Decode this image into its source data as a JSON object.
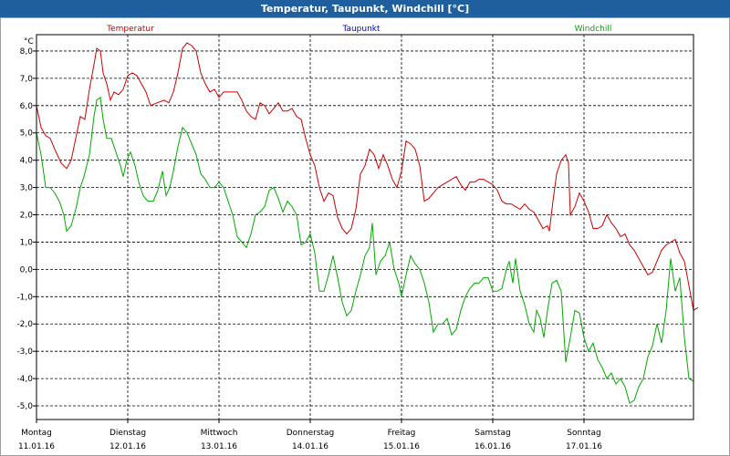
{
  "window": {
    "title": "Temperatur, Taupunkt, Windchill [°C]"
  },
  "chart_data": {
    "type": "line",
    "title": "Temperatur, Taupunkt, Windchill [°C]",
    "ylabel": "°C",
    "ylim": [
      -5.5,
      8.6
    ],
    "xlim": [
      0,
      7.2
    ],
    "grid": true,
    "y_ticks": [
      8.0,
      7.0,
      6.0,
      5.0,
      4.0,
      3.0,
      2.0,
      1.0,
      0.0,
      -1.0,
      -2.0,
      -3.0,
      -4.0,
      -5.0
    ],
    "y_tick_labels": [
      "8,0",
      "7,0",
      "6,0",
      "5,0",
      "4,0",
      "3,0",
      "2,0",
      "1,0",
      "0,0",
      "-1,0",
      "-2,0",
      "-3,0",
      "-4,0",
      "-5,0"
    ],
    "x_ticks": [
      {
        "day": "Montag",
        "date": "11.01.16"
      },
      {
        "day": "Dienstag",
        "date": "12.01.16"
      },
      {
        "day": "Mittwoch",
        "date": "13.01.16"
      },
      {
        "day": "Donnerstag",
        "date": "14.01.16"
      },
      {
        "day": "Freitag",
        "date": "15.01.16"
      },
      {
        "day": "Samstag",
        "date": "16.01.16"
      },
      {
        "day": "Sonntag",
        "date": "17.01.16"
      }
    ],
    "series": [
      {
        "name": "Temperatur",
        "color": "#cc0000",
        "points": [
          [
            0,
            6.0
          ],
          [
            0.05,
            5.2
          ],
          [
            0.1,
            4.9
          ],
          [
            0.15,
            4.8
          ],
          [
            0.2,
            4.4
          ],
          [
            0.27,
            3.9
          ],
          [
            0.33,
            3.7
          ],
          [
            0.38,
            4.0
          ],
          [
            0.43,
            4.8
          ],
          [
            0.48,
            5.6
          ],
          [
            0.53,
            5.5
          ],
          [
            0.58,
            6.6
          ],
          [
            0.63,
            7.5
          ],
          [
            0.66,
            8.1
          ],
          [
            0.7,
            8.0
          ],
          [
            0.73,
            7.2
          ],
          [
            0.77,
            6.8
          ],
          [
            0.81,
            6.2
          ],
          [
            0.85,
            6.5
          ],
          [
            0.9,
            6.4
          ],
          [
            0.95,
            6.6
          ],
          [
            1.0,
            7.1
          ],
          [
            1.05,
            7.2
          ],
          [
            1.1,
            7.1
          ],
          [
            1.15,
            6.8
          ],
          [
            1.2,
            6.5
          ],
          [
            1.25,
            6.0
          ],
          [
            1.32,
            6.1
          ],
          [
            1.4,
            6.2
          ],
          [
            1.45,
            6.1
          ],
          [
            1.5,
            6.5
          ],
          [
            1.55,
            7.2
          ],
          [
            1.6,
            8.1
          ],
          [
            1.65,
            8.3
          ],
          [
            1.7,
            8.2
          ],
          [
            1.75,
            8.0
          ],
          [
            1.8,
            7.2
          ],
          [
            1.85,
            6.8
          ],
          [
            1.9,
            6.5
          ],
          [
            1.95,
            6.6
          ],
          [
            2.0,
            6.3
          ],
          [
            2.05,
            6.5
          ],
          [
            2.1,
            6.5
          ],
          [
            2.15,
            6.5
          ],
          [
            2.2,
            6.5
          ],
          [
            2.25,
            6.2
          ],
          [
            2.3,
            5.8
          ],
          [
            2.35,
            5.6
          ],
          [
            2.4,
            5.5
          ],
          [
            2.45,
            6.1
          ],
          [
            2.5,
            6.0
          ],
          [
            2.55,
            5.7
          ],
          [
            2.6,
            5.9
          ],
          [
            2.65,
            6.1
          ],
          [
            2.7,
            5.8
          ],
          [
            2.75,
            5.8
          ],
          [
            2.8,
            5.9
          ],
          [
            2.85,
            5.6
          ],
          [
            2.9,
            5.5
          ],
          [
            2.95,
            4.8
          ],
          [
            3.0,
            4.2
          ],
          [
            3.05,
            3.8
          ],
          [
            3.1,
            3.0
          ],
          [
            3.15,
            2.5
          ],
          [
            3.2,
            2.8
          ],
          [
            3.25,
            2.7
          ],
          [
            3.3,
            1.9
          ],
          [
            3.35,
            1.5
          ],
          [
            3.4,
            1.3
          ],
          [
            3.45,
            1.5
          ],
          [
            3.5,
            2.2
          ],
          [
            3.55,
            3.5
          ],
          [
            3.6,
            3.8
          ],
          [
            3.65,
            4.4
          ],
          [
            3.7,
            4.2
          ],
          [
            3.75,
            3.7
          ],
          [
            3.8,
            4.2
          ],
          [
            3.85,
            3.8
          ],
          [
            3.9,
            3.3
          ],
          [
            3.95,
            3.0
          ],
          [
            4.0,
            3.6
          ],
          [
            4.05,
            4.7
          ],
          [
            4.1,
            4.6
          ],
          [
            4.15,
            4.4
          ],
          [
            4.2,
            3.8
          ],
          [
            4.25,
            2.5
          ],
          [
            4.3,
            2.6
          ],
          [
            4.35,
            2.8
          ],
          [
            4.4,
            3.0
          ],
          [
            4.45,
            3.1
          ],
          [
            4.5,
            3.2
          ],
          [
            4.55,
            3.3
          ],
          [
            4.6,
            3.4
          ],
          [
            4.65,
            3.1
          ],
          [
            4.7,
            2.9
          ],
          [
            4.75,
            3.2
          ],
          [
            4.8,
            3.2
          ],
          [
            4.85,
            3.3
          ],
          [
            4.9,
            3.3
          ],
          [
            4.95,
            3.2
          ],
          [
            5.0,
            3.1
          ],
          [
            5.05,
            2.9
          ],
          [
            5.1,
            2.5
          ],
          [
            5.15,
            2.4
          ],
          [
            5.2,
            2.4
          ],
          [
            5.25,
            2.3
          ],
          [
            5.3,
            2.2
          ],
          [
            5.35,
            2.4
          ],
          [
            5.4,
            2.2
          ],
          [
            5.45,
            2.1
          ],
          [
            5.5,
            1.8
          ],
          [
            5.55,
            1.5
          ],
          [
            5.6,
            1.6
          ],
          [
            5.62,
            1.4
          ],
          [
            5.66,
            2.5
          ],
          [
            5.7,
            3.5
          ],
          [
            5.75,
            4.0
          ],
          [
            5.8,
            4.2
          ],
          [
            5.83,
            3.9
          ],
          [
            5.85,
            2.0
          ],
          [
            5.9,
            2.3
          ],
          [
            5.95,
            2.8
          ],
          [
            6.0,
            2.5
          ],
          [
            6.05,
            2.1
          ],
          [
            6.1,
            1.5
          ],
          [
            6.15,
            1.5
          ],
          [
            6.2,
            1.6
          ],
          [
            6.25,
            2.0
          ],
          [
            6.3,
            1.7
          ],
          [
            6.35,
            1.5
          ],
          [
            6.4,
            1.2
          ],
          [
            6.45,
            1.3
          ],
          [
            6.5,
            0.9
          ],
          [
            6.55,
            0.7
          ],
          [
            6.6,
            0.4
          ],
          [
            6.65,
            0.1
          ],
          [
            6.7,
            -0.2
          ],
          [
            6.75,
            -0.1
          ],
          [
            6.8,
            0.3
          ],
          [
            6.85,
            0.7
          ],
          [
            6.9,
            0.9
          ],
          [
            6.95,
            1.0
          ],
          [
            7.0,
            1.1
          ],
          [
            7.05,
            0.6
          ],
          [
            7.1,
            0.3
          ],
          [
            7.15,
            -0.6
          ],
          [
            7.2,
            -1.5
          ],
          [
            7.25,
            -1.4
          ]
        ]
      },
      {
        "name": "Taupunkt",
        "color": "#0000cc",
        "points": []
      },
      {
        "name": "Windchill",
        "color": "#00aa00",
        "points": [
          [
            0,
            5.0
          ],
          [
            0.05,
            4.2
          ],
          [
            0.08,
            3.5
          ],
          [
            0.1,
            3.0
          ],
          [
            0.15,
            3.0
          ],
          [
            0.2,
            2.8
          ],
          [
            0.25,
            2.5
          ],
          [
            0.3,
            2.0
          ],
          [
            0.33,
            1.4
          ],
          [
            0.38,
            1.6
          ],
          [
            0.43,
            2.2
          ],
          [
            0.48,
            3.0
          ],
          [
            0.52,
            3.4
          ],
          [
            0.58,
            4.2
          ],
          [
            0.63,
            5.6
          ],
          [
            0.66,
            6.2
          ],
          [
            0.7,
            6.3
          ],
          [
            0.73,
            5.5
          ],
          [
            0.77,
            4.8
          ],
          [
            0.82,
            4.8
          ],
          [
            0.88,
            4.2
          ],
          [
            0.92,
            3.8
          ],
          [
            0.95,
            3.4
          ],
          [
            0.99,
            4.0
          ],
          [
            1.03,
            4.3
          ],
          [
            1.08,
            3.8
          ],
          [
            1.12,
            3.2
          ],
          [
            1.17,
            2.7
          ],
          [
            1.22,
            2.5
          ],
          [
            1.28,
            2.5
          ],
          [
            1.33,
            2.9
          ],
          [
            1.38,
            3.6
          ],
          [
            1.42,
            2.7
          ],
          [
            1.46,
            3.0
          ],
          [
            1.5,
            3.6
          ],
          [
            1.55,
            4.5
          ],
          [
            1.6,
            5.2
          ],
          [
            1.65,
            5.0
          ],
          [
            1.7,
            4.6
          ],
          [
            1.75,
            4.2
          ],
          [
            1.8,
            3.5
          ],
          [
            1.85,
            3.3
          ],
          [
            1.9,
            3.0
          ],
          [
            1.95,
            3.0
          ],
          [
            2.0,
            3.2
          ],
          [
            2.05,
            3.0
          ],
          [
            2.1,
            2.5
          ],
          [
            2.15,
            2.0
          ],
          [
            2.2,
            1.2
          ],
          [
            2.25,
            1.0
          ],
          [
            2.3,
            0.8
          ],
          [
            2.35,
            1.3
          ],
          [
            2.4,
            2.0
          ],
          [
            2.45,
            2.1
          ],
          [
            2.5,
            2.3
          ],
          [
            2.55,
            2.9
          ],
          [
            2.6,
            3.0
          ],
          [
            2.65,
            2.6
          ],
          [
            2.7,
            2.1
          ],
          [
            2.75,
            2.5
          ],
          [
            2.8,
            2.3
          ],
          [
            2.85,
            2.0
          ],
          [
            2.9,
            0.9
          ],
          [
            2.95,
            1.0
          ],
          [
            3.0,
            1.3
          ],
          [
            3.05,
            0.6
          ],
          [
            3.1,
            -0.8
          ],
          [
            3.15,
            -0.8
          ],
          [
            3.2,
            -0.2
          ],
          [
            3.25,
            0.5
          ],
          [
            3.3,
            -0.3
          ],
          [
            3.35,
            -1.2
          ],
          [
            3.4,
            -1.7
          ],
          [
            3.45,
            -1.5
          ],
          [
            3.5,
            -0.8
          ],
          [
            3.55,
            -0.2
          ],
          [
            3.6,
            0.5
          ],
          [
            3.65,
            0.8
          ],
          [
            3.68,
            1.7
          ],
          [
            3.72,
            -0.2
          ],
          [
            3.77,
            0.3
          ],
          [
            3.82,
            0.5
          ],
          [
            3.87,
            1.0
          ],
          [
            3.92,
            0.0
          ],
          [
            3.97,
            -0.5
          ],
          [
            4.0,
            -1.0
          ],
          [
            4.05,
            -0.2
          ],
          [
            4.1,
            0.5
          ],
          [
            4.15,
            0.2
          ],
          [
            4.2,
            0.0
          ],
          [
            4.25,
            -0.5
          ],
          [
            4.3,
            -1.2
          ],
          [
            4.35,
            -2.3
          ],
          [
            4.4,
            -2.0
          ],
          [
            4.45,
            -2.0
          ],
          [
            4.5,
            -1.8
          ],
          [
            4.55,
            -2.4
          ],
          [
            4.6,
            -2.2
          ],
          [
            4.65,
            -1.5
          ],
          [
            4.7,
            -1.0
          ],
          [
            4.75,
            -0.7
          ],
          [
            4.8,
            -0.5
          ],
          [
            4.85,
            -0.5
          ],
          [
            4.9,
            -0.3
          ],
          [
            4.95,
            -0.3
          ],
          [
            5.0,
            -0.8
          ],
          [
            5.05,
            -0.8
          ],
          [
            5.1,
            -0.7
          ],
          [
            5.15,
            0.0
          ],
          [
            5.18,
            0.3
          ],
          [
            5.22,
            -0.5
          ],
          [
            5.25,
            0.4
          ],
          [
            5.3,
            -0.8
          ],
          [
            5.35,
            -1.3
          ],
          [
            5.4,
            -2.0
          ],
          [
            5.45,
            -2.3
          ],
          [
            5.48,
            -1.5
          ],
          [
            5.52,
            -1.8
          ],
          [
            5.56,
            -2.5
          ],
          [
            5.6,
            -1.5
          ],
          [
            5.65,
            -0.5
          ],
          [
            5.7,
            -0.4
          ],
          [
            5.75,
            -0.8
          ],
          [
            5.8,
            -3.4
          ],
          [
            5.85,
            -2.5
          ],
          [
            5.9,
            -1.5
          ],
          [
            5.95,
            -1.6
          ],
          [
            6.0,
            -2.5
          ],
          [
            6.05,
            -3.0
          ],
          [
            6.1,
            -2.7
          ],
          [
            6.15,
            -3.3
          ],
          [
            6.2,
            -3.6
          ],
          [
            6.25,
            -4.0
          ],
          [
            6.3,
            -3.8
          ],
          [
            6.35,
            -4.2
          ],
          [
            6.4,
            -4.0
          ],
          [
            6.45,
            -4.3
          ],
          [
            6.5,
            -4.9
          ],
          [
            6.55,
            -4.8
          ],
          [
            6.6,
            -4.3
          ],
          [
            6.65,
            -4.0
          ],
          [
            6.7,
            -3.2
          ],
          [
            6.75,
            -2.8
          ],
          [
            6.8,
            -2.0
          ],
          [
            6.85,
            -2.7
          ],
          [
            6.9,
            -1.5
          ],
          [
            6.95,
            0.4
          ],
          [
            7.0,
            -0.8
          ],
          [
            7.05,
            -0.3
          ],
          [
            7.1,
            -2.5
          ],
          [
            7.15,
            -4.0
          ],
          [
            7.2,
            -4.1
          ]
        ]
      }
    ]
  }
}
